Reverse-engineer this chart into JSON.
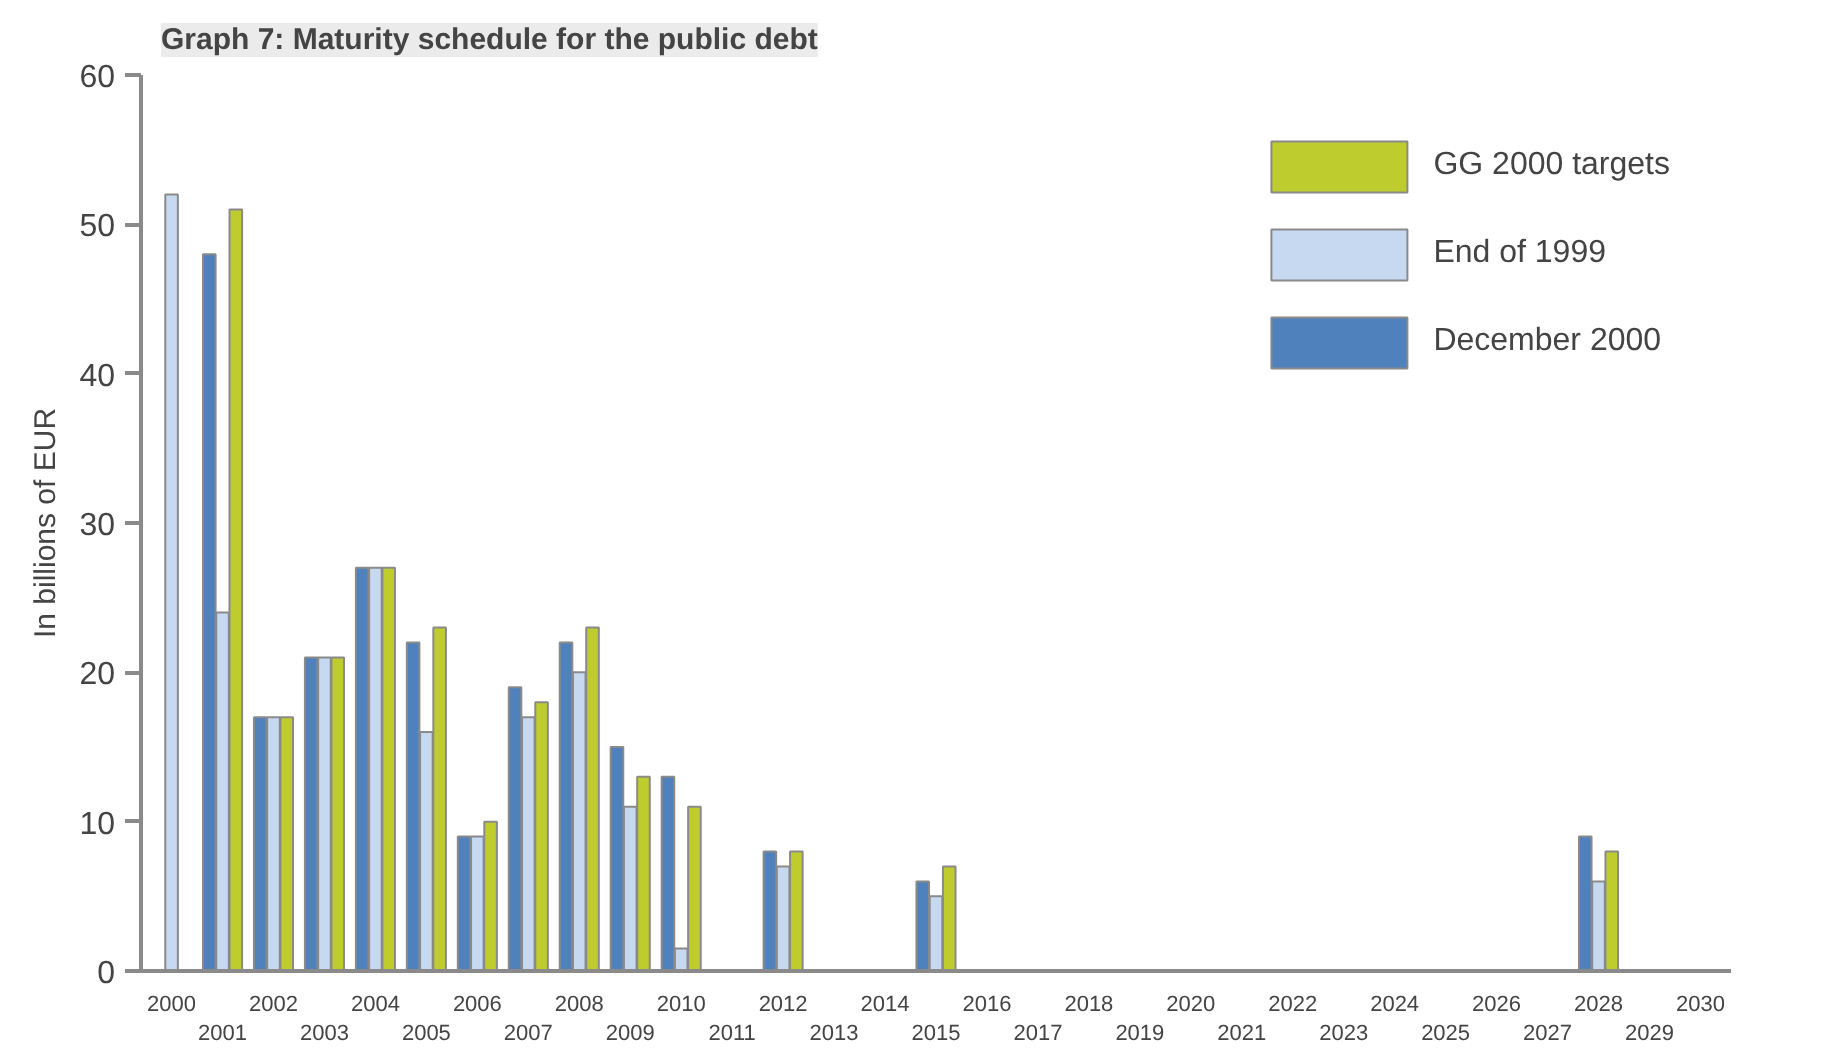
{
  "chart_data": {
    "type": "bar",
    "title": "Graph 7: Maturity schedule for the public debt",
    "ylabel": "In billions of EUR",
    "categories": [
      "2000",
      "2001",
      "2002",
      "2003",
      "2004",
      "2005",
      "2006",
      "2007",
      "2008",
      "2009",
      "2010",
      "2011",
      "2012",
      "2013",
      "2014",
      "2015",
      "2016",
      "2017",
      "2018",
      "2019",
      "2020",
      "2021",
      "2022",
      "2023",
      "2024",
      "2025",
      "2026",
      "2027",
      "2028",
      "2029",
      "2030"
    ],
    "series": [
      {
        "name": "December 2000",
        "color": "#4f81bd",
        "values": [
          null,
          48,
          17,
          21,
          27,
          22,
          9,
          19,
          22,
          15,
          13,
          null,
          8,
          null,
          null,
          6,
          null,
          null,
          null,
          null,
          null,
          null,
          null,
          null,
          null,
          null,
          null,
          null,
          9,
          null,
          null
        ]
      },
      {
        "name": "End of 1999",
        "color": "#c6d9f1",
        "values": [
          52,
          24,
          17,
          21,
          27,
          16,
          9,
          17,
          20,
          11,
          1.5,
          null,
          7,
          null,
          null,
          5,
          null,
          null,
          null,
          null,
          null,
          null,
          null,
          null,
          null,
          null,
          null,
          null,
          6,
          null,
          null
        ]
      },
      {
        "name": "GG 2000 targets",
        "color": "#bfcc2e",
        "values": [
          null,
          51,
          17,
          21,
          27,
          23,
          10,
          18,
          23,
          13,
          11,
          null,
          8,
          null,
          null,
          7,
          null,
          null,
          null,
          null,
          null,
          null,
          null,
          null,
          null,
          null,
          null,
          null,
          8,
          null,
          null
        ]
      }
    ],
    "ylim": [
      0,
      60
    ],
    "yticks": [
      0,
      10,
      20,
      30,
      40,
      50,
      60
    ],
    "grid": false,
    "legend": "top right"
  }
}
